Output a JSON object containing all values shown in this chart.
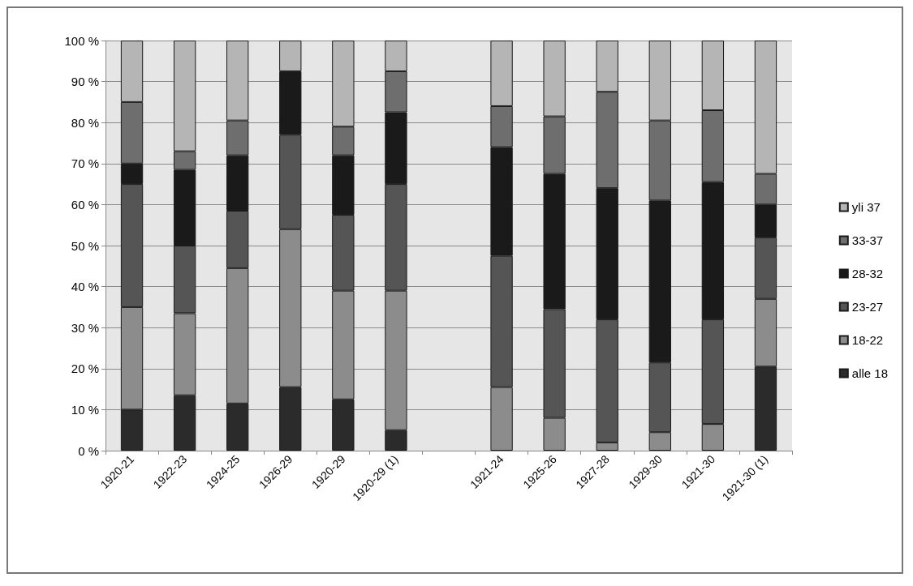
{
  "chart_data": {
    "type": "bar",
    "stacked": true,
    "categories": [
      "1920-21",
      "1922-23",
      "1924-25",
      "1926-29",
      "1920-29",
      "1920-29 (1)",
      null,
      "1921-24",
      "1925-26",
      "1927-28",
      "1929-30",
      "1921-30",
      "1921-30 (1)"
    ],
    "series": [
      {
        "name": "alle 18",
        "color": "#2b2b2b",
        "values": [
          10,
          13.5,
          11.5,
          15.5,
          12.5,
          5,
          null,
          0,
          0,
          0,
          0,
          0,
          20.5
        ]
      },
      {
        "name": "18-22",
        "color": "#8c8c8c",
        "values": [
          25,
          20,
          33,
          38.5,
          26.5,
          34,
          null,
          15.5,
          8,
          2,
          4.5,
          6.5,
          16.5
        ]
      },
      {
        "name": "23-27",
        "color": "#555555",
        "values": [
          30,
          16.5,
          14,
          23,
          18.5,
          26,
          null,
          32,
          26.5,
          30,
          17,
          25.5,
          15
        ]
      },
      {
        "name": "28-32",
        "color": "#1a1a1a",
        "values": [
          5,
          18.5,
          13.5,
          15.5,
          14.5,
          17.5,
          null,
          26.5,
          33,
          32,
          39.5,
          33.5,
          8
        ]
      },
      {
        "name": "33-37",
        "color": "#6e6e6e",
        "values": [
          15,
          4.5,
          8.5,
          0,
          7,
          10,
          null,
          10,
          14,
          23.5,
          19.5,
          17.5,
          7.5
        ]
      },
      {
        "name": "yli 37",
        "color": "#b5b5b5",
        "values": [
          15,
          27,
          19.5,
          7.5,
          21,
          7.5,
          null,
          16,
          18.5,
          12.5,
          19.5,
          17,
          32.5
        ]
      }
    ],
    "ylim": [
      0,
      100
    ],
    "yticks": [
      {
        "value": 0,
        "label": "0 %"
      },
      {
        "value": 10,
        "label": "10 %"
      },
      {
        "value": 20,
        "label": "20 %"
      },
      {
        "value": 30,
        "label": "30 %"
      },
      {
        "value": 40,
        "label": "40 %"
      },
      {
        "value": 50,
        "label": "50 %"
      },
      {
        "value": 60,
        "label": "60 %"
      },
      {
        "value": 70,
        "label": "70 %"
      },
      {
        "value": 80,
        "label": "80 %"
      },
      {
        "value": 90,
        "label": "90 %"
      },
      {
        "value": 100,
        "label": "100 %"
      }
    ],
    "grid": "y",
    "legend": "right"
  }
}
